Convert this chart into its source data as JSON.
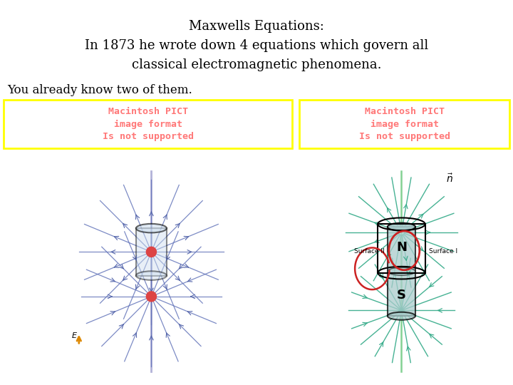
{
  "title_line1": "Maxwells Equations:",
  "title_line2": "In 1873 he wrote down 4 equations which govern all",
  "title_line3": "classical electromagnetic phenomena.",
  "subtitle": "You already know two of them.",
  "bg": "#ffffff",
  "title_fs": 13,
  "sub_fs": 12,
  "pict_text": "Macintosh PICT\nimage format\nIs not supported",
  "pict_color": "#ff7777",
  "pict_border": "#ffff00",
  "line_blue": "#6677bb",
  "arrow_blue": "#5566aa",
  "charge_red": "#dd4444",
  "line_green": "#33aa88",
  "mag_fill": "#aacccc",
  "red_loop": "#cc2222",
  "orange_arrow": "#dd8800",
  "vert_blue": "#9999cc",
  "vert_green": "#77cc88"
}
